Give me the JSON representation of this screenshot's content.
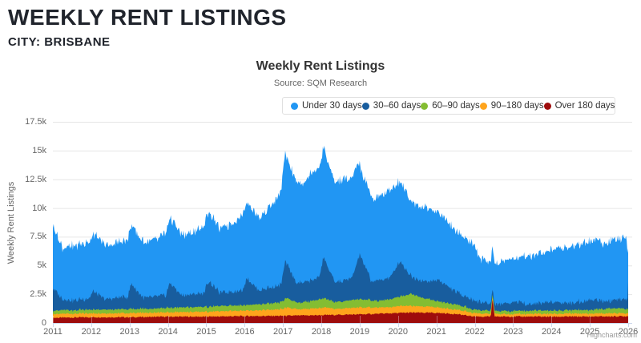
{
  "header": {
    "title": "WEEKLY RENT LISTINGS",
    "city_label": "CITY: BRISBANE"
  },
  "chart_data": {
    "type": "area",
    "stacking": "normal",
    "title": "Weekly Rent Listings",
    "subtitle": "Source: SQM Research",
    "credits": "Highcharts.com",
    "legend_position": "top-center",
    "grid": "horizontal",
    "colors": {
      "grid_line": "#e6e6e6",
      "axis_line": "#ccd6eb",
      "label_text": "#666666",
      "title_text": "#333333"
    },
    "xaxis": {
      "min": 2011,
      "max": 2026,
      "tick_interval": 1,
      "years": [
        2011,
        2012,
        2013,
        2014,
        2015,
        2016,
        2017,
        2018,
        2019,
        2020,
        2021,
        2022,
        2023,
        2024,
        2025,
        2026
      ]
    },
    "yaxis": {
      "title": "Weekly Rent Listings",
      "min": 0,
      "max": 17500,
      "tick_interval": 2500,
      "tick_labels": [
        "0",
        "2.5k",
        "5k",
        "7.5k",
        "10k",
        "12.5k",
        "15k",
        "17.5k"
      ]
    },
    "series": [
      {
        "name": "Under 30 days",
        "color": "#2196f3",
        "noise": 280,
        "keyframes": [
          [
            2011.0,
            5600
          ],
          [
            2011.05,
            5200
          ],
          [
            2011.25,
            4500
          ],
          [
            2011.5,
            4700
          ],
          [
            2011.9,
            4900
          ],
          [
            2012.05,
            5000
          ],
          [
            2012.4,
            4700
          ],
          [
            2012.7,
            4800
          ],
          [
            2013.05,
            5100
          ],
          [
            2013.4,
            4800
          ],
          [
            2013.8,
            5100
          ],
          [
            2014.05,
            5700
          ],
          [
            2014.4,
            5200
          ],
          [
            2014.8,
            5500
          ],
          [
            2015.05,
            6100
          ],
          [
            2015.4,
            5500
          ],
          [
            2015.8,
            6200
          ],
          [
            2016.05,
            6700
          ],
          [
            2016.4,
            6300
          ],
          [
            2016.9,
            7800
          ],
          [
            2017.05,
            9300
          ],
          [
            2017.3,
            8900
          ],
          [
            2017.5,
            8600
          ],
          [
            2017.8,
            9500
          ],
          [
            2018.05,
            9600
          ],
          [
            2018.3,
            8700
          ],
          [
            2018.6,
            8800
          ],
          [
            2018.9,
            8500
          ],
          [
            2019.05,
            7500
          ],
          [
            2019.4,
            7200
          ],
          [
            2019.8,
            7600
          ],
          [
            2020.05,
            7000
          ],
          [
            2020.4,
            6500
          ],
          [
            2020.7,
            6500
          ],
          [
            2021.0,
            6000
          ],
          [
            2021.3,
            5600
          ],
          [
            2021.6,
            5100
          ],
          [
            2021.95,
            5000
          ],
          [
            2022.15,
            3800
          ],
          [
            2022.5,
            3500
          ],
          [
            2022.9,
            3800
          ],
          [
            2023.2,
            3900
          ],
          [
            2023.6,
            4300
          ],
          [
            2024.05,
            4600
          ],
          [
            2024.5,
            4900
          ],
          [
            2025.05,
            5200
          ],
          [
            2025.4,
            5100
          ],
          [
            2025.8,
            5300
          ],
          [
            2025.95,
            5500
          ],
          [
            2026.0,
            3100
          ]
        ]
      },
      {
        "name": "30–60 days",
        "color": "#185d9e",
        "noise": 180,
        "keyframes": [
          [
            2011.0,
            2000
          ],
          [
            2011.25,
            950
          ],
          [
            2011.6,
            850
          ],
          [
            2011.95,
            1000
          ],
          [
            2012.05,
            1600
          ],
          [
            2012.35,
            900
          ],
          [
            2012.95,
            1100
          ],
          [
            2013.05,
            2200
          ],
          [
            2013.35,
            950
          ],
          [
            2013.95,
            1100
          ],
          [
            2014.05,
            2200
          ],
          [
            2014.35,
            1050
          ],
          [
            2014.95,
            1200
          ],
          [
            2015.05,
            2300
          ],
          [
            2015.35,
            1150
          ],
          [
            2015.95,
            1300
          ],
          [
            2016.05,
            2400
          ],
          [
            2016.35,
            1250
          ],
          [
            2016.95,
            1500
          ],
          [
            2017.05,
            3200
          ],
          [
            2017.35,
            1700
          ],
          [
            2017.8,
            1800
          ],
          [
            2017.95,
            2000
          ],
          [
            2018.05,
            3600
          ],
          [
            2018.35,
            1700
          ],
          [
            2018.8,
            1900
          ],
          [
            2019.0,
            3900
          ],
          [
            2019.3,
            1700
          ],
          [
            2019.8,
            1900
          ],
          [
            2020.05,
            3100
          ],
          [
            2020.35,
            1500
          ],
          [
            2020.8,
            1500
          ],
          [
            2021.05,
            1900
          ],
          [
            2021.5,
            1100
          ],
          [
            2022.0,
            800
          ],
          [
            2022.5,
            550
          ],
          [
            2023.05,
            800
          ],
          [
            2023.5,
            550
          ],
          [
            2024.05,
            800
          ],
          [
            2024.5,
            600
          ],
          [
            2025.05,
            900
          ],
          [
            2025.5,
            650
          ],
          [
            2025.9,
            800
          ],
          [
            2025.98,
            850
          ],
          [
            2026.0,
            2300
          ]
        ]
      },
      {
        "name": "60–90 days",
        "color": "#84bd32",
        "noise": 60,
        "keyframes": [
          [
            2011.0,
            300
          ],
          [
            2012.0,
            320
          ],
          [
            2013.0,
            340
          ],
          [
            2014.0,
            380
          ],
          [
            2015.0,
            430
          ],
          [
            2016.0,
            480
          ],
          [
            2016.9,
            560
          ],
          [
            2017.1,
            820
          ],
          [
            2017.4,
            560
          ],
          [
            2018.05,
            780
          ],
          [
            2018.4,
            600
          ],
          [
            2019.05,
            720
          ],
          [
            2019.5,
            560
          ],
          [
            2020.2,
            900
          ],
          [
            2020.35,
            1050
          ],
          [
            2020.7,
            680
          ],
          [
            2021.0,
            560
          ],
          [
            2021.6,
            420
          ],
          [
            2022.0,
            300
          ],
          [
            2022.5,
            260
          ],
          [
            2023.0,
            260
          ],
          [
            2024.0,
            290
          ],
          [
            2025.0,
            320
          ],
          [
            2025.8,
            450
          ],
          [
            2026.0,
            350
          ]
        ]
      },
      {
        "name": "90–180 days",
        "color": "#ffa41c",
        "noise": 50,
        "keyframes": [
          [
            2011.0,
            320
          ],
          [
            2012.0,
            340
          ],
          [
            2013.0,
            350
          ],
          [
            2014.0,
            380
          ],
          [
            2015.0,
            420
          ],
          [
            2016.0,
            480
          ],
          [
            2016.9,
            550
          ],
          [
            2017.1,
            700
          ],
          [
            2017.4,
            520
          ],
          [
            2018.05,
            640
          ],
          [
            2018.4,
            520
          ],
          [
            2019.0,
            600
          ],
          [
            2019.5,
            520
          ],
          [
            2020.1,
            600
          ],
          [
            2020.5,
            560
          ],
          [
            2021.0,
            480
          ],
          [
            2021.6,
            380
          ],
          [
            2022.0,
            280
          ],
          [
            2022.5,
            220
          ],
          [
            2023.0,
            220
          ],
          [
            2024.0,
            240
          ],
          [
            2025.0,
            250
          ],
          [
            2026.0,
            280
          ]
        ]
      },
      {
        "name": "Over 180 days",
        "color": "#9e0c0c",
        "noise": 60,
        "keyframes": [
          [
            2011.0,
            450
          ],
          [
            2012.0,
            500
          ],
          [
            2013.0,
            500
          ],
          [
            2014.0,
            550
          ],
          [
            2015.0,
            550
          ],
          [
            2016.0,
            600
          ],
          [
            2017.0,
            620
          ],
          [
            2018.0,
            680
          ],
          [
            2019.0,
            750
          ],
          [
            2019.5,
            800
          ],
          [
            2020.3,
            900
          ],
          [
            2021.0,
            880
          ],
          [
            2021.5,
            780
          ],
          [
            2021.9,
            600
          ],
          [
            2022.2,
            550
          ],
          [
            2022.42,
            560
          ],
          [
            2022.46,
            2000
          ],
          [
            2022.52,
            560
          ],
          [
            2023.0,
            560
          ],
          [
            2024.0,
            550
          ],
          [
            2025.0,
            560
          ],
          [
            2025.9,
            580
          ],
          [
            2026.0,
            600
          ]
        ]
      }
    ]
  }
}
